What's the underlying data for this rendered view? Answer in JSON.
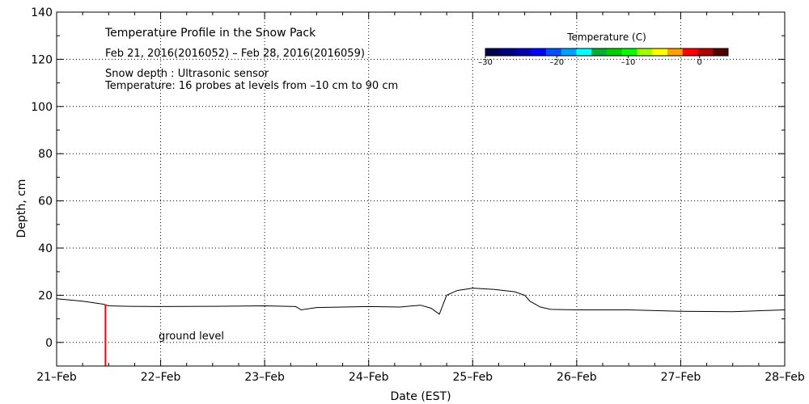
{
  "chart_data": {
    "type": "line",
    "title": "Temperature Profile in the Snow Pack",
    "subtitle": "Feb 21, 2016(2016052) – Feb 28, 2016(2016059)",
    "annotations": [
      "Snow depth : Ultrasonic sensor",
      "Temperature: 16 probes at levels from –10 cm to 90 cm"
    ],
    "xlabel": "Date (EST)",
    "ylabel": "Depth, cm",
    "x_ticks": [
      "21–Feb",
      "22–Feb",
      "23–Feb",
      "24–Feb",
      "25–Feb",
      "26–Feb",
      "27–Feb",
      "28–Feb"
    ],
    "xlim": [
      0,
      7
    ],
    "ylim": [
      -10,
      140
    ],
    "y_ticks": [
      0,
      20,
      40,
      60,
      80,
      100,
      120,
      140
    ],
    "grid": true,
    "ground_label": "ground level",
    "colorbar": {
      "title": "Temperature (C)",
      "ticks": [
        -30,
        -20,
        -10,
        0
      ],
      "tick_labels": [
        "–30",
        "–20",
        "–10",
        "0"
      ],
      "range": [
        -30,
        4
      ],
      "colors": [
        "#000050",
        "#000080",
        "#0000b0",
        "#0000ff",
        "#0050ff",
        "#00a0ff",
        "#00ffff",
        "#00b030",
        "#00d000",
        "#00ff00",
        "#a0ff00",
        "#ffff00",
        "#ffa000",
        "#ff0000",
        "#b00000",
        "#500000"
      ]
    },
    "series": [
      {
        "color": "#000000",
        "x": [
          0,
          0.25,
          0.45,
          0.5,
          0.7,
          1.0,
          1.5,
          2.0,
          2.3,
          2.35,
          2.5,
          3.0,
          3.3,
          3.5,
          3.6,
          3.68,
          3.75,
          3.85,
          4.0,
          4.2,
          4.4,
          4.5,
          4.55,
          4.65,
          4.75,
          5.0,
          5.5,
          6.0,
          6.5,
          6.8,
          7.0
        ],
        "values": [
          18.5,
          17.5,
          16.2,
          15.5,
          15.3,
          15.2,
          15.3,
          15.5,
          15.2,
          13.8,
          14.8,
          15.2,
          15.0,
          15.8,
          14.5,
          12.0,
          20.0,
          22.0,
          23.0,
          22.5,
          21.5,
          20.0,
          17.5,
          15.0,
          14.0,
          13.8,
          13.8,
          13.2,
          13.0,
          13.5,
          13.8
        ]
      },
      {
        "color": "#ff0000",
        "x": [
          0.47,
          0.47
        ],
        "values": [
          16,
          -10
        ]
      }
    ]
  }
}
